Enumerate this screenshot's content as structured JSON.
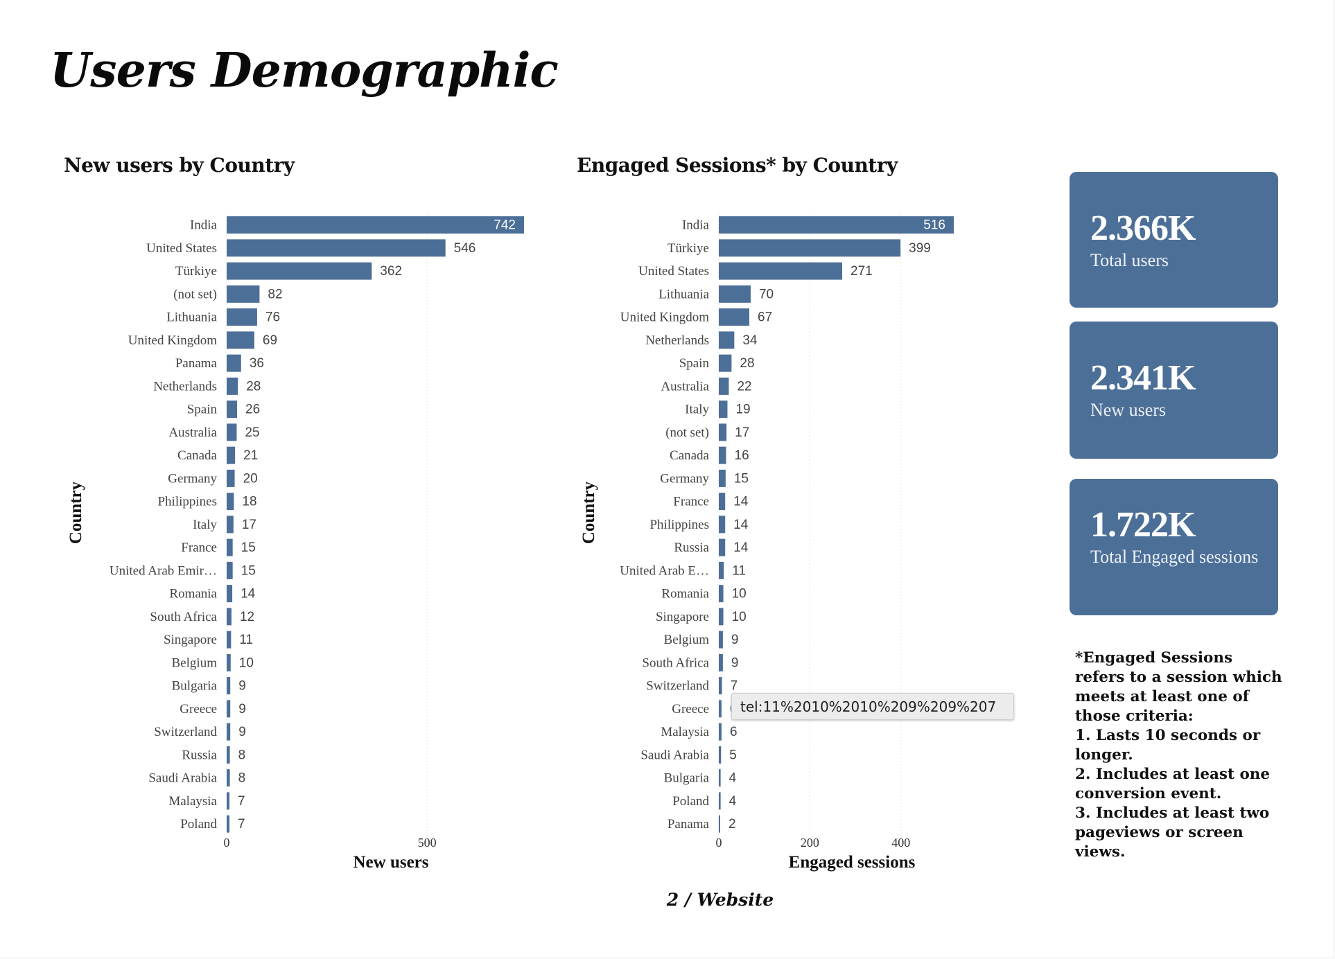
{
  "page": {
    "title": "Users Demographic",
    "footer": "2 / Website"
  },
  "chart_data": [
    {
      "type": "bar",
      "orientation": "horizontal",
      "title": "New users by Country",
      "xlabel": "New users",
      "ylabel": "Country",
      "xlim": [
        0,
        742
      ],
      "x_ticks": [
        "0",
        "500"
      ],
      "tick_values": [
        0,
        500
      ],
      "grid": true,
      "categories": [
        "India",
        "United States",
        "Türkiye",
        "(not set)",
        "Lithuania",
        "United Kingdom",
        "Panama",
        "Netherlands",
        "Spain",
        "Australia",
        "Canada",
        "Germany",
        "Philippines",
        "Italy",
        "France",
        "United Arab Emir…",
        "Romania",
        "South Africa",
        "Singapore",
        "Belgium",
        "Bulgaria",
        "Greece",
        "Switzerland",
        "Russia",
        "Saudi Arabia",
        "Malaysia",
        "Poland"
      ],
      "values": [
        742,
        546,
        362,
        82,
        76,
        69,
        36,
        28,
        26,
        25,
        21,
        20,
        18,
        17,
        15,
        15,
        14,
        12,
        11,
        10,
        9,
        9,
        9,
        8,
        8,
        7,
        7
      ],
      "color": "#4c6f98"
    },
    {
      "type": "bar",
      "orientation": "horizontal",
      "title": "Engaged Sessions* by Country",
      "xlabel": "Engaged sessions",
      "ylabel": "Country",
      "xlim": [
        0,
        516
      ],
      "x_ticks": [
        "0",
        "200",
        "400"
      ],
      "tick_values": [
        0,
        200,
        400
      ],
      "grid": true,
      "categories": [
        "India",
        "Türkiye",
        "United States",
        "Lithuania",
        "United Kingdom",
        "Netherlands",
        "Spain",
        "Australia",
        "Italy",
        "(not set)",
        "Canada",
        "Germany",
        "France",
        "Philippines",
        "Russia",
        "United Arab E…",
        "Romania",
        "Singapore",
        "Belgium",
        "South Africa",
        "Switzerland",
        "Greece",
        "Malaysia",
        "Saudi Arabia",
        "Bulgaria",
        "Poland",
        "Panama"
      ],
      "values": [
        516,
        399,
        271,
        70,
        67,
        34,
        28,
        22,
        19,
        17,
        16,
        15,
        14,
        14,
        14,
        11,
        10,
        10,
        9,
        9,
        7,
        6,
        6,
        5,
        4,
        4,
        2
      ],
      "color": "#4c6f98"
    }
  ],
  "kpis": [
    {
      "value": "2.366K",
      "label": "Total users"
    },
    {
      "value": "2.341K",
      "label": "New users"
    },
    {
      "value": "1.722K",
      "label": "Total Engaged sessions"
    }
  ],
  "note": "*Engaged Sessions refers to a session which meets at least one of those criteria:\n1. Lasts 10 seconds or longer.\n2. Includes at least one conversion event.\n3. Includes at least two pageviews or screen views.",
  "tooltip": "tel:11%2010%2010%209%209%207"
}
